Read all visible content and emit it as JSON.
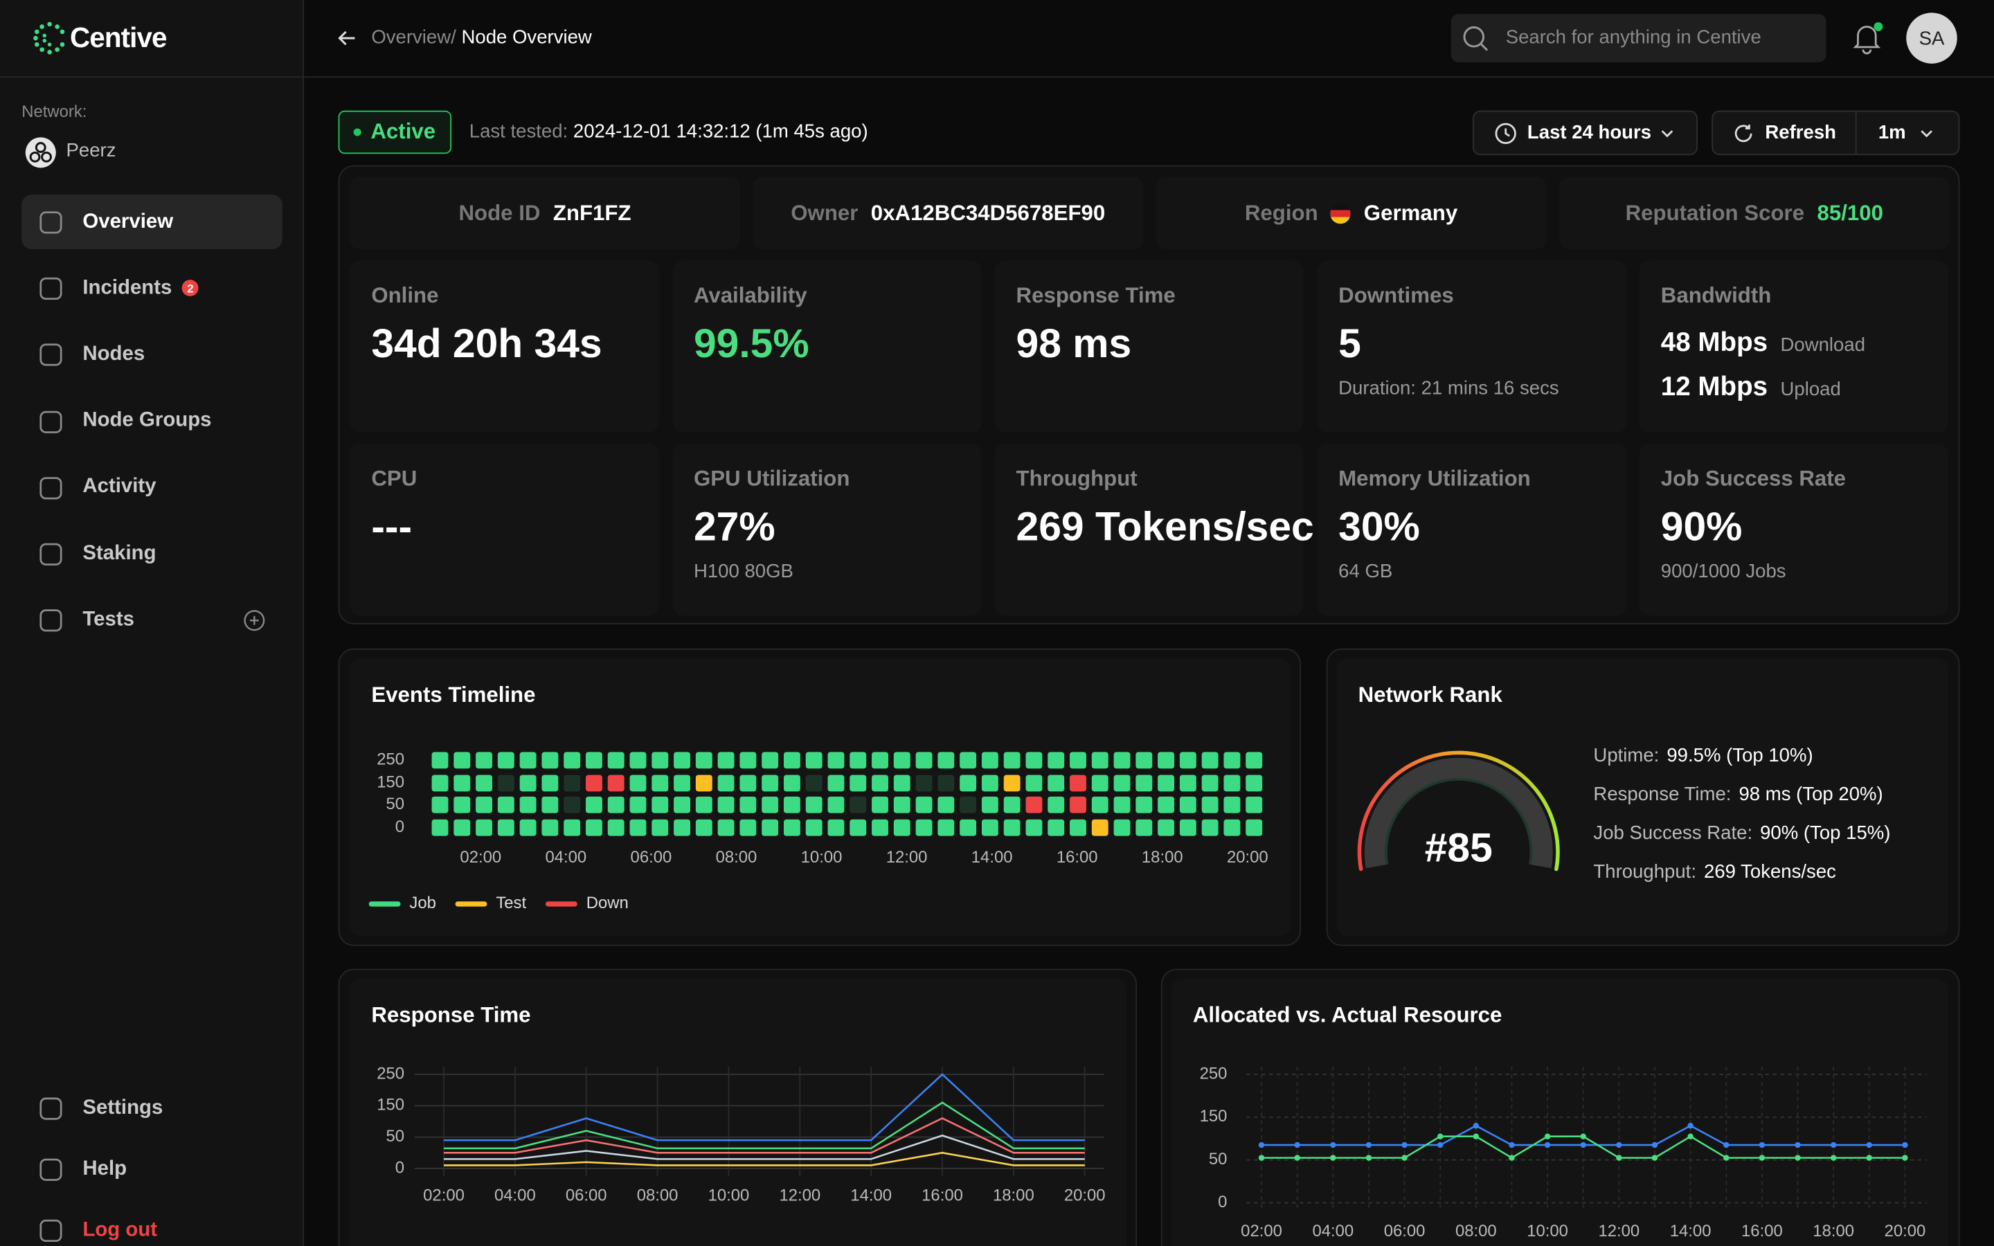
{
  "sidebar": {
    "logo": "Centive",
    "network_label": "Network:",
    "network": "Peerz",
    "nav": [
      {
        "label": "Overview",
        "active": true
      },
      {
        "label": "Incidents",
        "badge": "2"
      },
      {
        "label": "Nodes"
      },
      {
        "label": "Node Groups"
      },
      {
        "label": "Activity"
      },
      {
        "label": "Staking"
      },
      {
        "label": "Tests"
      }
    ],
    "footer_nav": [
      {
        "label": "Settings"
      },
      {
        "label": "Help"
      },
      {
        "label": "Log out",
        "color": "#ef4444"
      }
    ]
  },
  "header": {
    "breadcrumb_parent": "Overview/",
    "breadcrumb_current": "Node Overview",
    "search_placeholder": "Search for anything in Centive",
    "avatar": "SA"
  },
  "status": {
    "badge": "Active",
    "last_tested_label": "Last tested:",
    "last_tested": "2024-12-01 14:32:12 (1m 45s ago)",
    "range": "Last 24 hours",
    "refresh": "Refresh",
    "interval": "1m"
  },
  "info": [
    {
      "label": "Node ID",
      "value": "ZnF1FZ"
    },
    {
      "label": "Owner",
      "value": "0xA12BC34D5678EF90"
    },
    {
      "label": "Region",
      "value": "Germany"
    },
    {
      "label": "Reputation Score",
      "value": "85/100",
      "value_color": "#4ade80"
    }
  ],
  "stats": [
    {
      "label": "Online",
      "value": "34d 20h 34s"
    },
    {
      "label": "Availability",
      "value": "99.5%",
      "value_color": "#4ade80"
    },
    {
      "label": "Response Time",
      "value": "98 ms"
    },
    {
      "label": "Downtimes",
      "value": "5",
      "sub": "Duration: 21 mins 16 secs"
    },
    {
      "label": "Bandwidth",
      "rows": [
        {
          "value": "48 Mbps",
          "unit": "Download"
        },
        {
          "value": "12 Mbps",
          "unit": "Upload"
        }
      ]
    },
    {
      "label": "CPU",
      "value": "---"
    },
    {
      "label": "GPU Utilization",
      "value": "27%",
      "sub": "H100 80GB"
    },
    {
      "label": "Throughput",
      "value": "269 Tokens/sec"
    },
    {
      "label": "Memory Utilization",
      "value": "30%",
      "sub": "64 GB"
    },
    {
      "label": "Job Success Rate",
      "value": "90%",
      "sub": "900/1000 Jobs"
    }
  ],
  "events_timeline": {
    "title": "Events Timeline",
    "yticks": [
      250,
      150,
      50,
      0
    ],
    "x_labels": [
      "02:00",
      "04:00",
      "06:00",
      "08:00",
      "10:00",
      "12:00",
      "14:00",
      "16:00",
      "18:00",
      "20:00"
    ],
    "legend": [
      {
        "name": "Job",
        "color": "#3ddc84"
      },
      {
        "name": "Test",
        "color": "#fbbf24"
      },
      {
        "name": "Down",
        "color": "#ef4444"
      }
    ],
    "empty_color": "#1e3327",
    "cells": [
      [
        0,
        0,
        0,
        0,
        0,
        0,
        0,
        0,
        0,
        0,
        0,
        0,
        0,
        0,
        0,
        0,
        0,
        0,
        0,
        0,
        0,
        0,
        0,
        0,
        0,
        0,
        0,
        0,
        0,
        0,
        0,
        0,
        0,
        0,
        0,
        0,
        0,
        0
      ],
      [
        0,
        0,
        0,
        null,
        0,
        0,
        null,
        2,
        2,
        0,
        0,
        0,
        1,
        0,
        0,
        0,
        0,
        null,
        0,
        0,
        0,
        0,
        null,
        null,
        0,
        0,
        1,
        0,
        0,
        2,
        0,
        0,
        0,
        0,
        0,
        0,
        0,
        0
      ],
      [
        0,
        0,
        0,
        0,
        0,
        0,
        null,
        0,
        0,
        0,
        0,
        0,
        0,
        0,
        0,
        0,
        0,
        0,
        0,
        null,
        0,
        0,
        0,
        0,
        null,
        0,
        0,
        2,
        0,
        2,
        0,
        0,
        0,
        0,
        0,
        0,
        0,
        0
      ],
      [
        0,
        0,
        0,
        0,
        0,
        0,
        0,
        0,
        0,
        0,
        0,
        0,
        0,
        0,
        0,
        0,
        0,
        0,
        0,
        0,
        0,
        0,
        0,
        0,
        0,
        0,
        0,
        0,
        0,
        0,
        1,
        0,
        0,
        0,
        0,
        0,
        0,
        0
      ]
    ]
  },
  "network_rank": {
    "title": "Network Rank",
    "rank": "#85",
    "metrics": [
      {
        "label": "Uptime:",
        "value": "99.5% (Top 10%)"
      },
      {
        "label": "Response Time:",
        "value": "98 ms (Top 20%)"
      },
      {
        "label": "Job Success Rate:",
        "value": "90% (Top 15%)"
      },
      {
        "label": "Throughput:",
        "value": "269 Tokens/sec"
      }
    ]
  },
  "chart_data": [
    {
      "type": "line",
      "title": "Response Time",
      "categories": [
        "02:00",
        "04:00",
        "06:00",
        "08:00",
        "10:00",
        "12:00",
        "14:00",
        "16:00",
        "18:00",
        "20:00"
      ],
      "ylim": [
        0,
        250
      ],
      "yticks": [
        0,
        50,
        150,
        250
      ],
      "grid": "solid",
      "markers": false,
      "series": [
        {
          "color": "#3b82f6",
          "values": [
            45,
            45,
            110,
            45,
            45,
            45,
            45,
            250,
            45,
            45
          ]
        },
        {
          "color": "#4ade80",
          "values": [
            32,
            32,
            70,
            32,
            32,
            32,
            32,
            160,
            32,
            32
          ]
        },
        {
          "color": "#f87171",
          "values": [
            25,
            25,
            45,
            25,
            25,
            25,
            25,
            110,
            25,
            25
          ]
        },
        {
          "color": "#cbd5e1",
          "values": [
            15,
            15,
            28,
            15,
            15,
            15,
            15,
            55,
            15,
            15
          ]
        },
        {
          "color": "#fcd34d",
          "values": [
            5,
            5,
            10,
            5,
            5,
            5,
            5,
            25,
            5,
            5
          ]
        }
      ]
    },
    {
      "type": "line",
      "title": "Allocated vs. Actual Resource",
      "categories": [
        "02:00",
        null,
        "04:00",
        null,
        "06:00",
        null,
        "08:00",
        null,
        "10:00",
        null,
        "12:00",
        null,
        "14:00",
        null,
        "16:00",
        null,
        "18:00",
        null,
        "20:00"
      ],
      "ylim": [
        0,
        250
      ],
      "yticks": [
        0,
        50,
        150,
        250
      ],
      "grid": "dashed",
      "markers": true,
      "series": [
        {
          "color": "#3b82f6",
          "values": [
            85,
            85,
            85,
            85,
            85,
            85,
            130,
            85,
            85,
            85,
            85,
            85,
            130,
            85,
            85,
            85,
            85,
            85,
            85
          ]
        },
        {
          "color": "#4ade80",
          "values": [
            55,
            55,
            55,
            55,
            55,
            105,
            105,
            55,
            105,
            105,
            55,
            55,
            105,
            55,
            55,
            55,
            55,
            55,
            55
          ]
        }
      ]
    }
  ]
}
